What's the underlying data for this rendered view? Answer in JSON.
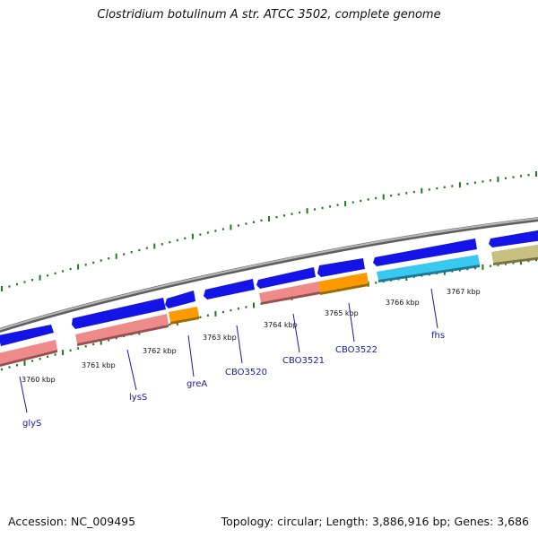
{
  "title": "Clostridium botulinum A str. ATCC 3502, complete genome",
  "footer": {
    "accession": "Accession: NC_009495",
    "summary": "Topology: circular; Length: 3,886,916 bp; Genes: 3,686"
  },
  "colors": {
    "backbone": "#8c8c8c",
    "tick": "#1f7a1f",
    "forward_gene": "#1414e6",
    "rrna_like": "#ee8a8a",
    "orange_gene": "#ff9900",
    "cyan_gene": "#38c8f0",
    "olive_gene": "#c8c080",
    "label": "#1a1aa8"
  },
  "scale_labels": [
    "3760 kbp",
    "3761 kbp",
    "3762 kbp",
    "3763 kbp",
    "3764 kbp",
    "3765 kbp",
    "3766 kbp",
    "3767 kbp"
  ],
  "genes": [
    {
      "name": "glyS"
    },
    {
      "name": "lysS"
    },
    {
      "name": "greA"
    },
    {
      "name": "CBO3520"
    },
    {
      "name": "CBO3521"
    },
    {
      "name": "CBO3522"
    },
    {
      "name": "fhs"
    }
  ]
}
